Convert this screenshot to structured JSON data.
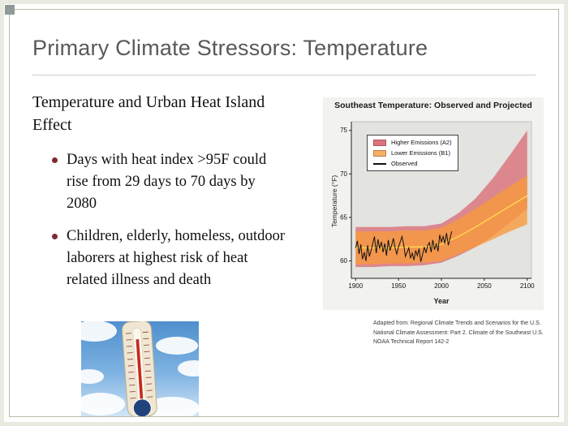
{
  "slide": {
    "title": "Primary Climate Stressors: Temperature",
    "content": {
      "heading": "Temperature and Urban Heat Island Effect",
      "bullets": [
        "Days with heat index >95F could rise from 29 days to 70 days by 2080",
        "Children, elderly, homeless, outdoor laborers at highest risk of heat related illness and death"
      ]
    },
    "images": {
      "thermometer_photo": "photo of an outdoor thermometer against a blue sky with white clouds"
    },
    "theme": {
      "title_color": "#595959",
      "bullet_color": "#7e2a33",
      "frame_color": "#b7bcab"
    }
  },
  "chart_data": {
    "type": "area",
    "title": "Southeast Temperature: Observed and Projected",
    "xlabel": "Year",
    "ylabel": "Temperature (°F)",
    "xlim": [
      1895,
      2105
    ],
    "ylim": [
      58,
      76
    ],
    "xticks": [
      1900,
      1950,
      2000,
      2050,
      2100
    ],
    "yticks": [
      60,
      65,
      70,
      75
    ],
    "grid": false,
    "legend_position": "upper-left",
    "legend": [
      {
        "label": "Higher Emissions (A2)",
        "color": "#d94f5c",
        "type": "band"
      },
      {
        "label": "Lower Emissions (B1)",
        "color": "#f79a3d",
        "type": "band"
      },
      {
        "label": "Observed",
        "color": "#111111",
        "type": "line"
      }
    ],
    "bands": [
      {
        "name": "Higher Emissions (A2)",
        "color": "#d94f5c",
        "opacity": 0.62,
        "x": [
          1900,
          1920,
          1940,
          1960,
          1980,
          2000,
          2020,
          2040,
          2060,
          2080,
          2100
        ],
        "low": [
          59.3,
          59.3,
          59.4,
          59.4,
          59.5,
          59.8,
          60.6,
          61.6,
          62.9,
          64.4,
          66.0
        ],
        "high": [
          63.9,
          63.9,
          63.9,
          64.0,
          64.0,
          64.3,
          65.5,
          67.2,
          69.5,
          72.2,
          75.0
        ]
      },
      {
        "name": "Lower Emissions (B1)",
        "color": "#f79a3d",
        "opacity": 0.8,
        "x": [
          1900,
          1920,
          1940,
          1960,
          1980,
          2000,
          2020,
          2040,
          2060,
          2080,
          2100
        ],
        "low": [
          59.6,
          59.6,
          59.7,
          59.7,
          59.8,
          60.0,
          60.8,
          61.6,
          62.5,
          63.4,
          64.2
        ],
        "high": [
          63.4,
          63.4,
          63.4,
          63.5,
          63.5,
          63.8,
          64.8,
          66.0,
          67.3,
          68.6,
          69.8
        ]
      }
    ],
    "median_line": {
      "color": "#ffd54f",
      "x": [
        1900,
        1920,
        1940,
        1960,
        1980,
        2000,
        2020,
        2040,
        2060,
        2080,
        2100
      ],
      "y": [
        61.5,
        61.5,
        61.5,
        61.6,
        61.6,
        61.9,
        62.8,
        63.9,
        65.1,
        66.3,
        67.5
      ]
    },
    "observed": {
      "x_start": 1900,
      "x_step": 2,
      "y": [
        61.5,
        62.3,
        60.8,
        61.9,
        60.2,
        61.0,
        60.0,
        61.8,
        60.5,
        61.2,
        62.0,
        62.8,
        60.9,
        62.5,
        61.4,
        62.2,
        61.0,
        62.0,
        60.6,
        62.4,
        61.2,
        61.8,
        62.6,
        61.5,
        60.8,
        61.6,
        62.2,
        62.8,
        61.9,
        60.5,
        61.0,
        61.5,
        60.3,
        60.9,
        60.1,
        61.2,
        60.6,
        61.4,
        59.9,
        60.7,
        61.6,
        60.9,
        61.8,
        62.1,
        61.0,
        62.4,
        61.3,
        62.0,
        61.1,
        63.0,
        62.2,
        62.8,
        62.0,
        63.2,
        61.8,
        62.6,
        63.4
      ]
    },
    "caption_lines": [
      "Adapted from: Regional Climate Trends and Scenarios for the U.S.",
      "National Climate Assessment: Part 2. Climate of the Southeast U.S.",
      "NOAA Technical Report 142-2"
    ]
  }
}
